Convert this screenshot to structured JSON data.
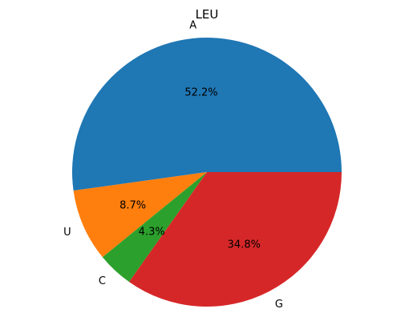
{
  "chart_data": {
    "type": "pie",
    "title": "LEU",
    "labels": [
      "A",
      "U",
      "C",
      "G"
    ],
    "values": [
      52.2,
      8.7,
      4.3,
      34.8
    ],
    "percent_labels": [
      "52.2%",
      "8.7%",
      "4.3%",
      "34.8%"
    ],
    "colors": [
      "#1f77b4",
      "#ff7f0e",
      "#2ca02c",
      "#d62728"
    ],
    "start_angle_deg": 0,
    "direction": "counterclockwise",
    "legend": "none"
  }
}
